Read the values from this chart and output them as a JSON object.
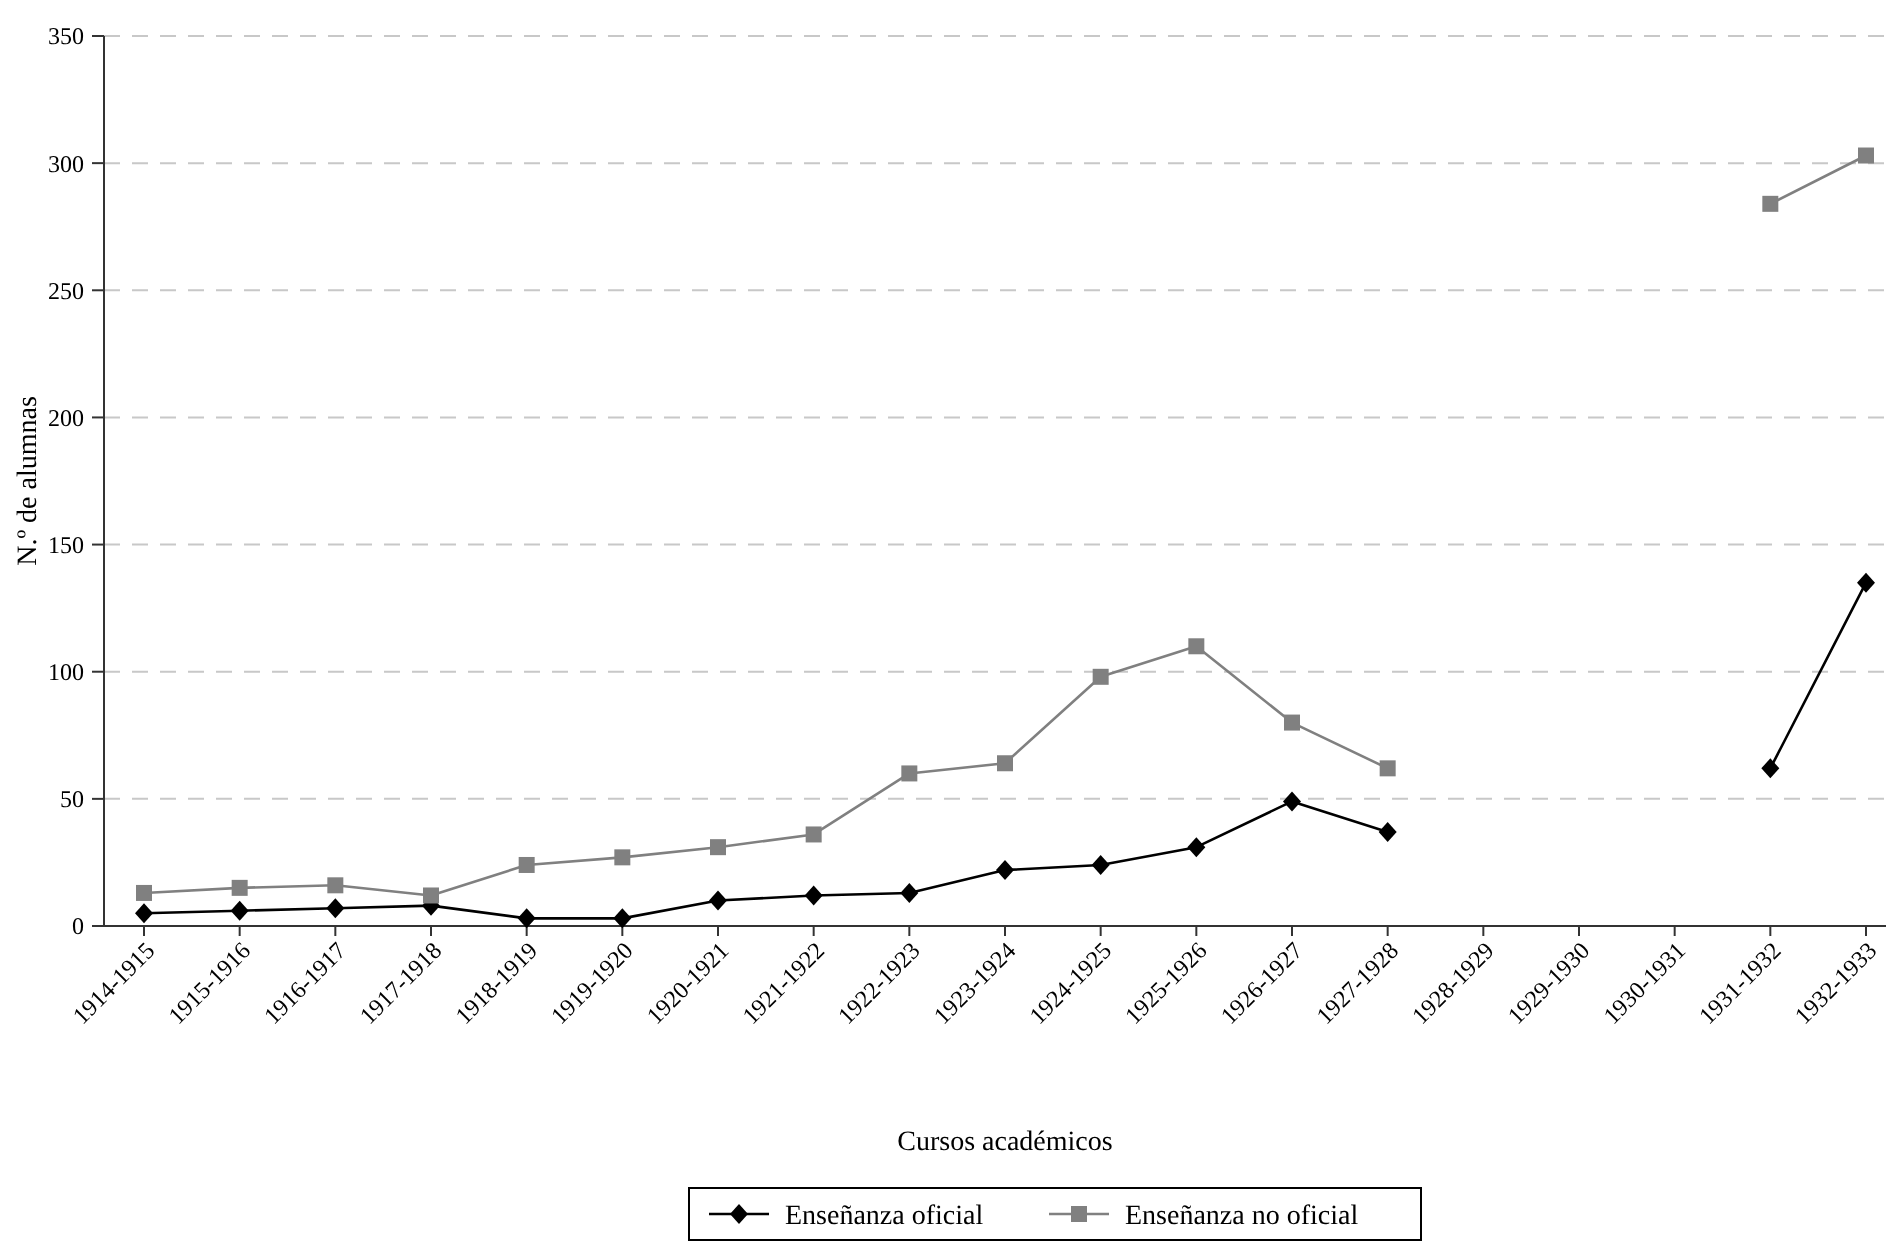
{
  "chart_data": {
    "type": "line",
    "xlabel": "Cursos académicos",
    "ylabel": "N.º de alumnas",
    "categories": [
      "1914-1915",
      "1915-1916",
      "1916-1917",
      "1917-1918",
      "1918-1919",
      "1919-1920",
      "1920-1921",
      "1921-1922",
      "1922-1923",
      "1923-1924",
      "1924-1925",
      "1925-1926",
      "1926-1927",
      "1927-1928",
      "1928-1929",
      "1929-1930",
      "1930-1931",
      "1931-1932",
      "1932-1933"
    ],
    "series": [
      {
        "name": "Enseñanza oficial",
        "color": "#000000",
        "marker": "diamond",
        "values": [
          5,
          6,
          7,
          8,
          3,
          3,
          10,
          12,
          13,
          22,
          24,
          31,
          49,
          37,
          null,
          null,
          null,
          62,
          135
        ]
      },
      {
        "name": "Enseñanza no oficial",
        "color": "#808080",
        "marker": "square",
        "values": [
          13,
          15,
          16,
          12,
          24,
          27,
          31,
          36,
          60,
          64,
          98,
          110,
          80,
          62,
          null,
          null,
          null,
          284,
          303
        ]
      }
    ],
    "ylim": [
      0,
      350
    ],
    "yticks": [
      0,
      50,
      100,
      150,
      200,
      250,
      300,
      350
    ],
    "grid": "y",
    "legend": "bottom",
    "line_style": "solid"
  }
}
